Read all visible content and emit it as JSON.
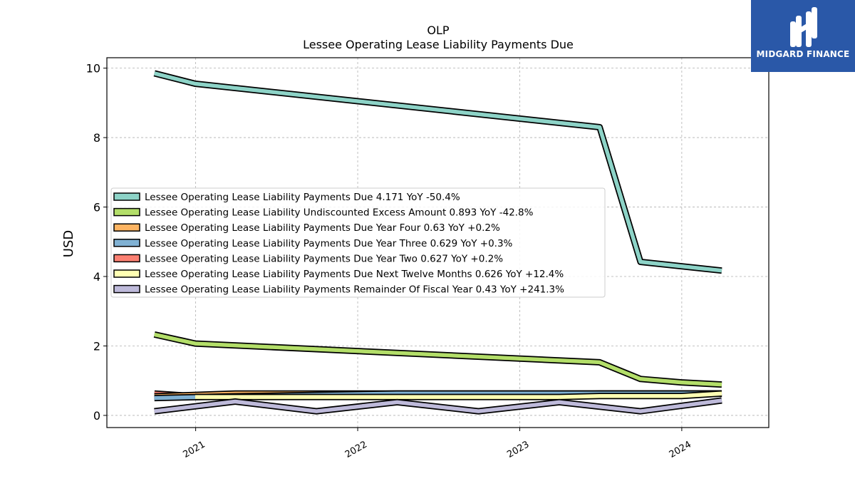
{
  "brand": {
    "name": "MIDGARD FINANCE",
    "bg_color": "#2a58a8"
  },
  "chart_data": {
    "type": "line",
    "title": "OLP",
    "subtitle": "Lessee Operating Lease Liability Payments Due",
    "xlabel": "",
    "ylabel": "USD",
    "xlim": [
      "2020-06-15",
      "2024-07-15"
    ],
    "ylim": [
      -0.35,
      10.3
    ],
    "x_ticks": [
      "2021",
      "2022",
      "2023",
      "2024"
    ],
    "y_ticks": [
      0,
      2,
      4,
      6,
      8,
      10
    ],
    "grid": true,
    "legend_position": "center-left",
    "series": [
      {
        "name": "Lessee Operating Lease Liability Payments Due",
        "legend": "Lessee Operating Lease Liability Payments Due  4.171 YoY -50.4%",
        "color": "#8dd3c7",
        "points": [
          [
            "2020-09-30",
            9.85
          ],
          [
            "2020-12-31",
            9.55
          ],
          [
            "2023-06-30",
            8.3
          ],
          [
            "2023-09-30",
            4.42
          ],
          [
            "2024-03-31",
            4.17
          ]
        ]
      },
      {
        "name": "Lessee Operating Lease Liability Undiscounted Excess Amount",
        "legend": "Lessee Operating Lease Liability Undiscounted Excess Amount  0.893 YoY -42.8%",
        "color": "#b3de69",
        "points": [
          [
            "2020-09-30",
            2.33
          ],
          [
            "2020-12-31",
            2.07
          ],
          [
            "2023-06-30",
            1.53
          ],
          [
            "2023-09-30",
            1.05
          ],
          [
            "2023-12-31",
            0.95
          ],
          [
            "2024-03-31",
            0.89
          ]
        ]
      },
      {
        "name": "Lessee Operating Lease Liability Payments Due Year Four",
        "legend": "Lessee Operating Lease Liability Payments Due Year Four  0.63 YoY +0.2%",
        "color": "#fdb462",
        "points": [
          [
            "2020-09-30",
            0.55
          ],
          [
            "2021-03-31",
            0.63
          ],
          [
            "2024-03-31",
            0.63
          ]
        ]
      },
      {
        "name": "Lessee Operating Lease Liability Payments Due Year Three",
        "legend": "Lessee Operating Lease Liability Payments Due Year Three  0.629 YoY +0.3%",
        "color": "#80b1d3",
        "points": [
          [
            "2020-09-30",
            0.5
          ],
          [
            "2021-03-31",
            0.55
          ],
          [
            "2022-03-31",
            0.63
          ],
          [
            "2024-03-31",
            0.63
          ]
        ]
      },
      {
        "name": "Lessee Operating Lease Liability Payments Due Year Two",
        "legend": "Lessee Operating Lease Liability Payments Due Year Two  0.627 YoY +0.2%",
        "color": "#fb8072",
        "points": [
          [
            "2020-09-30",
            0.63
          ],
          [
            "2020-12-31",
            0.55
          ],
          [
            "2021-03-31",
            0.6
          ],
          [
            "2023-03-31",
            0.6
          ],
          [
            "2023-06-30",
            0.63
          ],
          [
            "2024-03-31",
            0.63
          ]
        ]
      },
      {
        "name": "Lessee Operating Lease Liability Payments Due Next Twelve Months",
        "legend": "Lessee Operating Lease Liability Payments Due Next Twelve Months  0.626 YoY +12.4%",
        "color": "#ffffb3",
        "points": [
          [
            "2020-12-31",
            0.53
          ],
          [
            "2023-03-31",
            0.53
          ],
          [
            "2023-06-30",
            0.56
          ],
          [
            "2023-12-31",
            0.56
          ],
          [
            "2024-03-31",
            0.63
          ]
        ]
      },
      {
        "name": "Lessee Operating Lease Liability Payments Remainder Of Fiscal Year",
        "legend": "Lessee Operating Lease Liability Payments Remainder Of Fiscal Year  0.43 YoY +241.3%",
        "color": "#bebada",
        "points": [
          [
            "2020-09-30",
            0.12
          ],
          [
            "2021-03-31",
            0.4
          ],
          [
            "2021-09-30",
            0.12
          ],
          [
            "2022-03-31",
            0.38
          ],
          [
            "2022-09-30",
            0.12
          ],
          [
            "2023-03-31",
            0.38
          ],
          [
            "2023-09-30",
            0.12
          ],
          [
            "2024-03-31",
            0.43
          ]
        ]
      }
    ]
  }
}
